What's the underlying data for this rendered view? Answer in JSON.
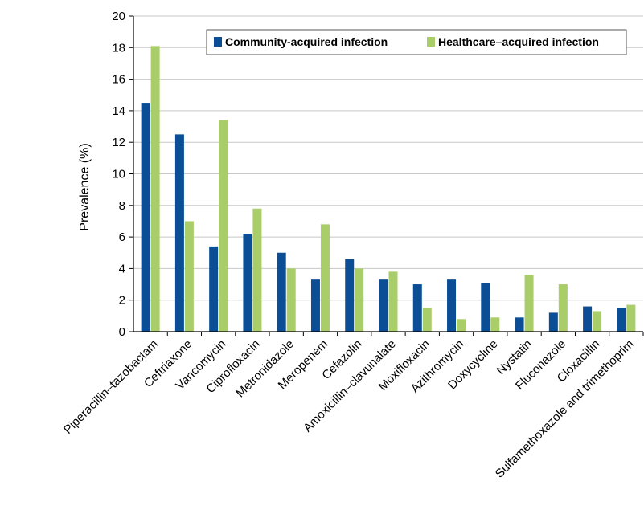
{
  "chart_data": {
    "type": "bar",
    "title": "",
    "xlabel": "",
    "ylabel": "Prevalence (%)",
    "ylim": [
      0,
      20
    ],
    "yticks": [
      0,
      2,
      4,
      6,
      8,
      10,
      12,
      14,
      16,
      18,
      20
    ],
    "grid": "horizontal",
    "legend_position": "top-right",
    "categories": [
      "Piperacillin–tazobactam",
      "Ceftriaxone",
      "Vancomycin",
      "Ciprofloxacin",
      "Metronidazole",
      "Meropenem",
      "Cefazolin",
      "Amoxicillin–clavunalate",
      "Moxifloxacin",
      "Azithromycin",
      "Doxycycline",
      "Nystatin",
      "Fluconazole",
      "Cloxacillin",
      "Sulfamethoxazole and trimethoprim"
    ],
    "series": [
      {
        "name": "Community-acquired infection",
        "color": "#0b4e96",
        "values": [
          14.5,
          12.5,
          5.4,
          6.2,
          5.0,
          3.3,
          4.6,
          3.3,
          3.0,
          3.3,
          3.1,
          0.9,
          1.2,
          1.6,
          1.5
        ]
      },
      {
        "name": "Healthcare–acquired infection",
        "color": "#a9cd68",
        "values": [
          18.1,
          7.0,
          13.4,
          7.8,
          4.0,
          6.8,
          4.0,
          3.8,
          1.5,
          0.8,
          0.9,
          3.6,
          3.0,
          1.3,
          1.7
        ]
      }
    ]
  }
}
